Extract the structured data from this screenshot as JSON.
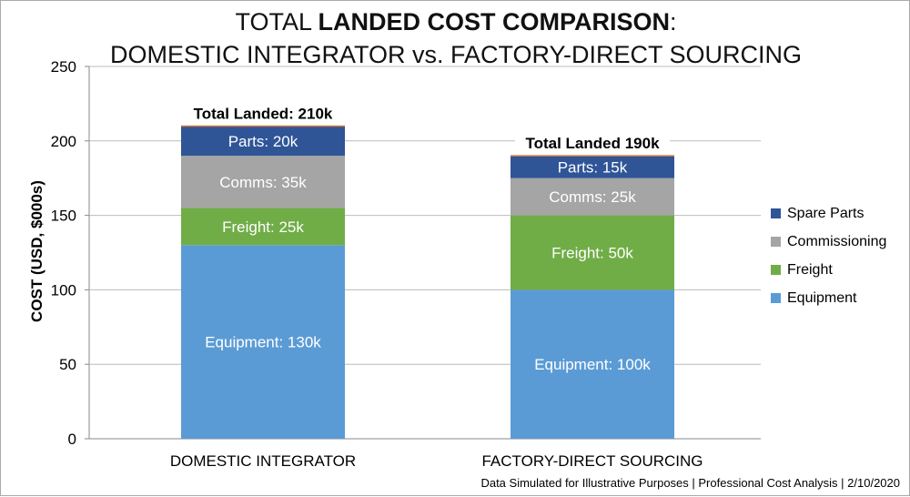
{
  "chart_data": {
    "type": "bar",
    "stacked": true,
    "title_line1_normal": "TOTAL ",
    "title_line1_bold": "LANDED COST COMPARISON",
    "title_line1_end": ":",
    "title_line2": "DOMESTIC INTEGRATOR vs. FACTORY-DIRECT SOURCING",
    "xlabel": "",
    "ylabel": "COST (USD, $000s)",
    "ylim": [
      0,
      250
    ],
    "yticks": [
      "0",
      "50",
      "100",
      "150",
      "200",
      "250"
    ],
    "grid": true,
    "legend_position": "right",
    "categories": [
      "DOMESTIC INTEGRATOR",
      "FACTORY-DIRECT SOURCING"
    ],
    "series": [
      {
        "name": "Equipment",
        "color": "#5b9bd5",
        "values": [
          130,
          100
        ],
        "labels": [
          "Equipment: 130k",
          "Equipment: 100k"
        ]
      },
      {
        "name": "Freight",
        "color": "#70ad47",
        "values": [
          25,
          50
        ],
        "labels": [
          "Freight: 25k",
          "Freight: 50k"
        ]
      },
      {
        "name": "Commissioning",
        "color": "#a5a5a5",
        "values": [
          35,
          25
        ],
        "labels": [
          "Comms: 35k",
          "Comms: 25k"
        ]
      },
      {
        "name": "Spare Parts",
        "color": "#2f5597",
        "values": [
          20,
          15
        ],
        "labels": [
          "Parts: 20k",
          "Parts: 15k"
        ]
      }
    ],
    "totals": [
      "Total Landed: 210k",
      "Total Landed 190k"
    ],
    "footer": "Data Simulated for Illustrative Purposes  |  Professional Cost Analysis  |  2/10/2020"
  }
}
